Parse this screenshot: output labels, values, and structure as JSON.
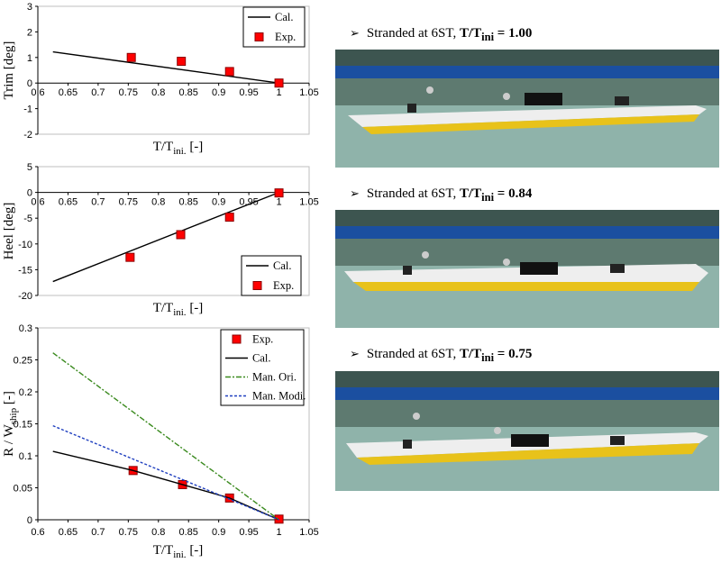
{
  "chart_data": [
    {
      "type": "scatter",
      "xlabel": "T/T",
      "xlabel_sub": "ini.",
      "xlabel_suffix": " [-]",
      "ylabel": "Trim [deg]",
      "xlim": [
        0.6,
        1.05
      ],
      "ylim": [
        -2,
        3
      ],
      "xticks": [
        "0.6",
        "0.65",
        "0.7",
        "0.75",
        "0.8",
        "0.85",
        "0.9",
        "0.95",
        "1",
        "1.05"
      ],
      "yticks": [
        "-2",
        "-1",
        "0",
        "1",
        "2",
        "3"
      ],
      "legend_position": "top-right",
      "series": [
        {
          "name": "Cal.",
          "kind": "line",
          "color": "#000000",
          "x": [
            0.625,
            1.0
          ],
          "y": [
            1.22,
            0.0
          ]
        },
        {
          "name": "Exp.",
          "kind": "marker",
          "color": "#ff0000",
          "x": [
            0.755,
            0.838,
            0.918,
            1.0
          ],
          "y": [
            1.0,
            0.85,
            0.45,
            0.0
          ]
        }
      ]
    },
    {
      "type": "scatter",
      "xlabel": "T/T",
      "xlabel_sub": "ini.",
      "xlabel_suffix": " [-]",
      "ylabel": "Heel [deg]",
      "xlim": [
        0.6,
        1.05
      ],
      "ylim": [
        -20,
        5
      ],
      "xticks": [
        "0.6",
        "0.65",
        "0.7",
        "0.75",
        "0.8",
        "0.85",
        "0.9",
        "0.95",
        "1",
        "1.05"
      ],
      "yticks": [
        "-20",
        "-15",
        "-10",
        "-5",
        "0",
        "5"
      ],
      "legend_position": "bottom-right",
      "series": [
        {
          "name": "Cal.",
          "kind": "line",
          "color": "#000000",
          "x": [
            0.625,
            1.0
          ],
          "y": [
            -17.3,
            0.0
          ]
        },
        {
          "name": "Exp.",
          "kind": "marker",
          "color": "#ff0000",
          "x": [
            0.753,
            0.837,
            0.918,
            1.0
          ],
          "y": [
            -12.6,
            -8.2,
            -4.8,
            -0.1
          ]
        }
      ]
    },
    {
      "type": "scatter",
      "xlabel": "T/T",
      "xlabel_sub": "ini.",
      "xlabel_suffix": " [-]",
      "ylabel": "R / W",
      "ylabel_sub": "ship",
      "ylabel_suffix": " [-]",
      "xlim": [
        0.6,
        1.05
      ],
      "ylim": [
        0,
        0.3
      ],
      "xticks": [
        "0.6",
        "0.65",
        "0.7",
        "0.75",
        "0.8",
        "0.85",
        "0.9",
        "0.95",
        "1",
        "1.05"
      ],
      "yticks": [
        "0",
        "0.05",
        "0.1",
        "0.15",
        "0.2",
        "0.25",
        "0.3"
      ],
      "legend_position": "top-right",
      "series": [
        {
          "name": "Exp.",
          "kind": "marker",
          "color": "#ff0000",
          "x": [
            0.758,
            0.84,
            0.918,
            1.0
          ],
          "y": [
            0.077,
            0.055,
            0.034,
            0.001
          ]
        },
        {
          "name": "Cal.",
          "kind": "line",
          "color": "#000000",
          "x": [
            0.625,
            0.758,
            0.84,
            0.918,
            1.0
          ],
          "y": [
            0.107,
            0.077,
            0.055,
            0.034,
            0.0
          ]
        },
        {
          "name": "Man. Ori.",
          "kind": "dashdot",
          "color": "#3a8a1e",
          "x": [
            0.625,
            1.0
          ],
          "y": [
            0.261,
            0.0
          ]
        },
        {
          "name": "Man. Modi.",
          "kind": "dashed",
          "color": "#1f3fbf",
          "x": [
            0.625,
            1.0
          ],
          "y": [
            0.147,
            0.0
          ]
        }
      ]
    }
  ],
  "photos": [
    {
      "prefix": "Stranded at 6ST, ",
      "ratio_main": "T/T",
      "ratio_sub": "ini",
      "ratio_value": " = 1.00"
    },
    {
      "prefix": "Stranded at 6ST, ",
      "ratio_main": "T/T",
      "ratio_sub": "ini",
      "ratio_value": " = 0.84"
    },
    {
      "prefix": "Stranded at 6ST, ",
      "ratio_main": "T/T",
      "ratio_sub": "ini",
      "ratio_value": " = 0.75"
    }
  ],
  "colors": {
    "exp_marker": "#ff0000",
    "marker_edge": "#8b0000",
    "hull": "#e8c21a",
    "deck": "#f2f2f2",
    "water": "#a9c9c0",
    "rail": "#1b4fa0"
  }
}
